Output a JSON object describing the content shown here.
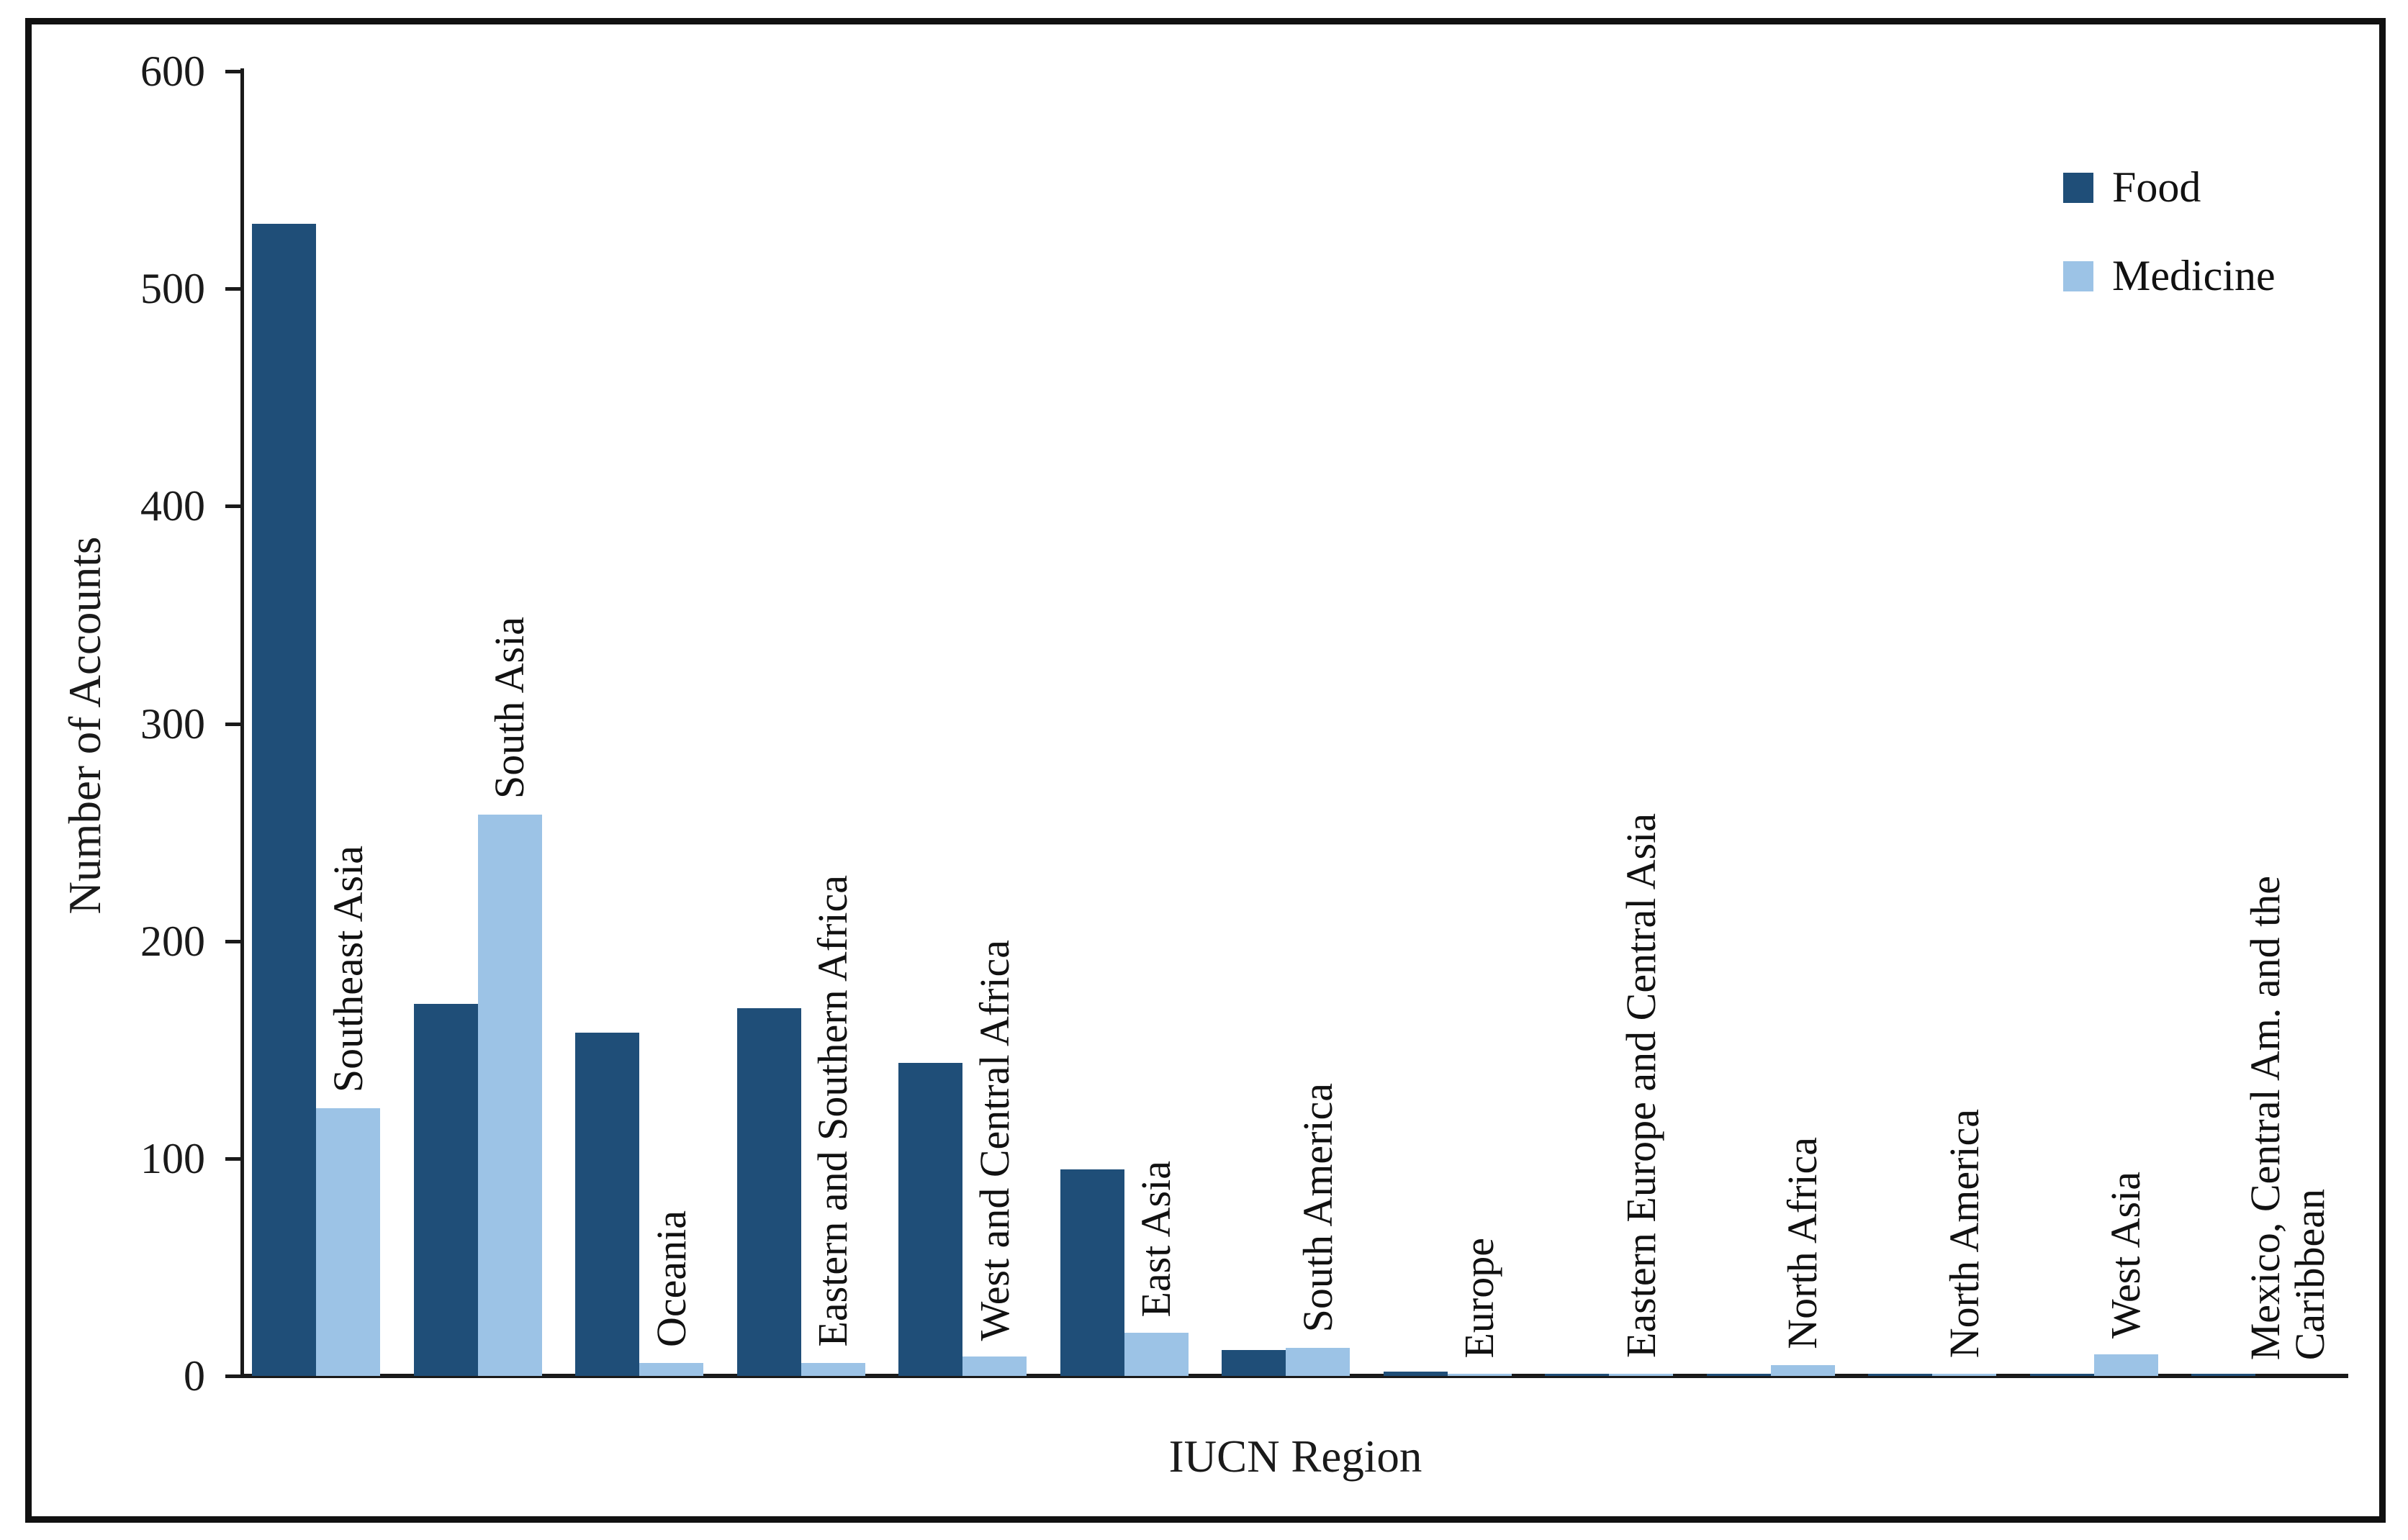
{
  "chart_data": {
    "type": "bar",
    "title": "",
    "xlabel": "IUCN Region",
    "ylabel": "Number of Accounts",
    "ylim": [
      0,
      600
    ],
    "yticks": [
      0,
      100,
      200,
      300,
      400,
      500,
      600
    ],
    "grid": false,
    "legend_position": "top-right-inside",
    "bar_arrangement": "grouped-pairs",
    "categories": [
      "Southeast Asia",
      "South Asia",
      "Oceania",
      "Eastern and Southern Africa",
      "West and Central Africa",
      "East Asia",
      "South America",
      "Europe",
      "Eastern Europe and Central Asia",
      "North Africa",
      "North America",
      "West Asia",
      "Mexico, Central Am. and the\nCaribbean"
    ],
    "series": [
      {
        "name": "Food",
        "color": "#1F4E78",
        "values": [
          530,
          171,
          158,
          169,
          144,
          95,
          12,
          2,
          1,
          1,
          1,
          1,
          1
        ]
      },
      {
        "name": "Medicine",
        "color": "#9CC3E6",
        "values": [
          123,
          258,
          6,
          6,
          9,
          20,
          13,
          1,
          1,
          5,
          1,
          10,
          0
        ]
      }
    ]
  },
  "colors": {
    "food": "#1F4E78",
    "medicine": "#9CC3E6",
    "axis": "#1a1a1a",
    "border": "#111111",
    "background": "#ffffff"
  }
}
